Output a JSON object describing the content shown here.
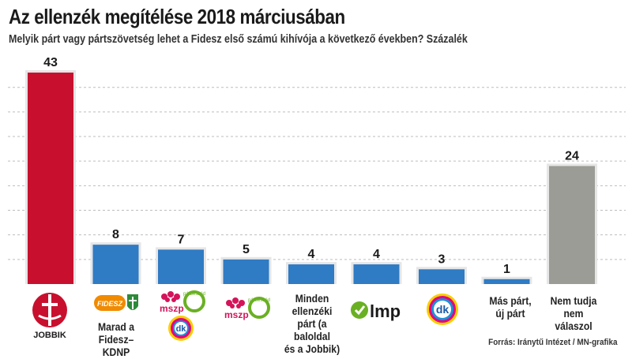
{
  "title": "Az ellenzék megítélése 2018 márciusában",
  "subtitle": "Melyik párt vagy pártszövetség lehet a Fidesz első számú kihívója a következő években? Százalék",
  "source": "Forrás: Iránytű Intézet / MN-grafika",
  "chart_data": {
    "type": "bar",
    "categories": [
      "Jobbik",
      "Marad a Fidesz–KDNP",
      "MSZP-Párbeszéd + DK",
      "MSZP-Párbeszéd",
      "Minden ellenzéki párt (a baloldal és a Jobbik)",
      "LMP",
      "DK",
      "Más párt, új párt",
      "Nem tudja nem válaszol"
    ],
    "values": [
      43,
      8,
      7,
      5,
      4,
      4,
      3,
      1,
      24
    ],
    "ylim": [
      0,
      45
    ],
    "grid": true,
    "colors": [
      "#c8102e",
      "#2f7bc4",
      "#2f7bc4",
      "#2f7bc4",
      "#2f7bc4",
      "#2f7bc4",
      "#2f7bc4",
      "#2f7bc4",
      "#9c9c96"
    ]
  },
  "labels": {
    "fidesz_kdnp_line1": "Marad a",
    "fidesz_kdnp_line2": "Fidesz–KDNP",
    "all_opp_line1": "Minden",
    "all_opp_line2": "ellenzéki",
    "all_opp_line3": "párt (a baloldal",
    "all_opp_line4": "és a Jobbik)",
    "other_line1": "Más párt,",
    "other_line2": "új párt",
    "dk_line1": "Nem tudja",
    "dk_line2": "nem válaszol"
  },
  "logos": {
    "jobbik": "JOBBIK",
    "fidesz": "FIDESZ",
    "mszp": "mszp",
    "parbeszed": "párbeszéd",
    "dk": "dk",
    "lmp": "lmp"
  }
}
